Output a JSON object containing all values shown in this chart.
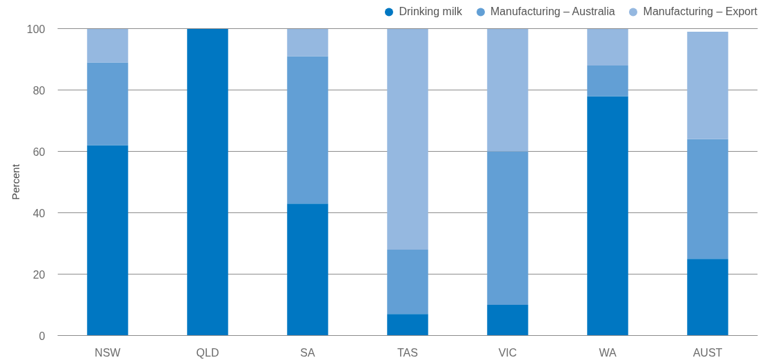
{
  "chart_data": {
    "type": "bar",
    "stacked": true,
    "ylabel": "Percent",
    "categories": [
      "NSW",
      "QLD",
      "SA",
      "TAS",
      "VIC",
      "WA",
      "AUST"
    ],
    "series": [
      {
        "name": "Drinking milk",
        "color": "#0077c2",
        "values": [
          62,
          100,
          43,
          7,
          10,
          78,
          25
        ]
      },
      {
        "name": "Manufacturing – Australia",
        "color": "#629fd5",
        "values": [
          27,
          0,
          48,
          21,
          50,
          10,
          39
        ]
      },
      {
        "name": "Manufacturing – Export",
        "color": "#95b8e0",
        "values": [
          11,
          0,
          9,
          72,
          40,
          12,
          35
        ]
      }
    ],
    "ylim": [
      0,
      100
    ],
    "yticks": [
      0,
      20,
      40,
      60,
      80,
      100
    ],
    "grid": "y",
    "legend": "top right"
  }
}
